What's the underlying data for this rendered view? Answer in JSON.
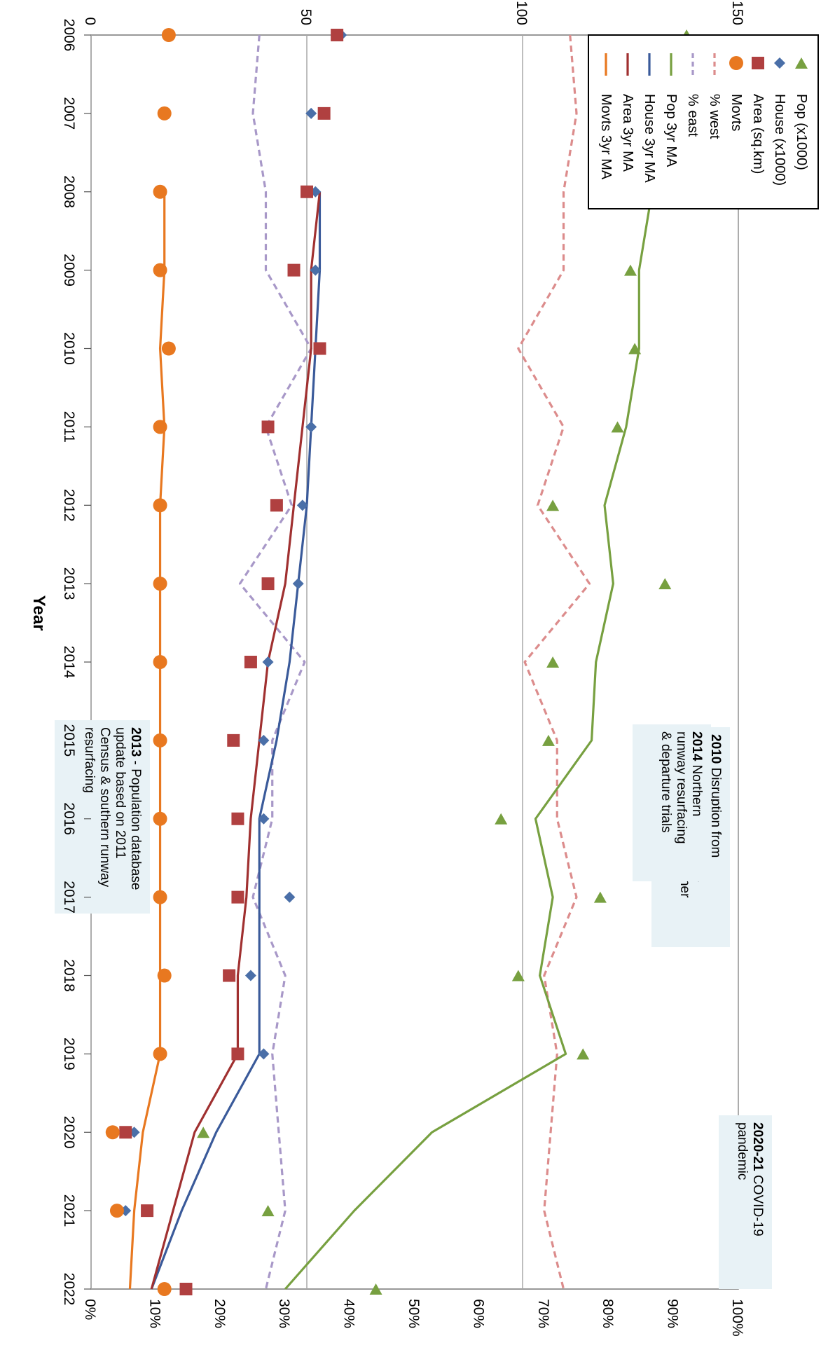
{
  "chart_data": {
    "type": "line",
    "orientation": "rotated-90-clockwise",
    "xlabel": "Year",
    "categories": [
      "2006",
      "2007",
      "2008",
      "2009",
      "2010",
      "2011",
      "2012",
      "2013",
      "2014",
      "2015",
      "2016",
      "2017",
      "2018",
      "2019",
      "2020",
      "2021",
      "2022"
    ],
    "left_axis": {
      "ticks": [
        "0",
        "50",
        "100",
        "150"
      ],
      "ylim": [
        0,
        150
      ]
    },
    "right_axis": {
      "ticks": [
        "0%",
        "10%",
        "20%",
        "30%",
        "40%",
        "50%",
        "60%",
        "70%",
        "80%",
        "90%",
        "100%"
      ],
      "ylim": [
        0,
        100
      ]
    },
    "grid": "horizontal at 0, 50, 100, 150",
    "legend_position": "top-right",
    "series": [
      {
        "name": "Pop (x1000)",
        "axis": "left",
        "kind": "marker",
        "marker": "triangle",
        "color": "#77a040",
        "values": [
          138,
          127,
          128,
          125,
          126,
          122,
          107,
          133,
          107,
          106,
          95,
          118,
          99,
          114,
          26,
          41,
          66
        ]
      },
      {
        "name": "House (x1000)",
        "axis": "left",
        "kind": "marker",
        "marker": "diamond",
        "color": "#4a6fa8",
        "values": [
          58,
          51,
          52,
          52,
          53,
          51,
          49,
          48,
          41,
          40,
          40,
          46,
          37,
          40,
          10,
          8,
          17
        ]
      },
      {
        "name": "Area (sq.km)",
        "axis": "left",
        "kind": "marker",
        "marker": "square",
        "color": "#b04040",
        "values": [
          57,
          54,
          50,
          47,
          53,
          41,
          43,
          41,
          37,
          33,
          34,
          34,
          32,
          34,
          8,
          13,
          22
        ]
      },
      {
        "name": "Movts",
        "axis": "left",
        "kind": "marker",
        "marker": "circle",
        "color": "#e87820",
        "values": [
          18,
          17,
          16,
          16,
          18,
          16,
          16,
          16,
          16,
          16,
          16,
          16,
          17,
          16,
          5,
          6,
          17
        ]
      },
      {
        "name": "% west",
        "axis": "right",
        "kind": "dashed",
        "color": "#dc8c8c",
        "values": [
          74,
          75,
          73,
          73,
          66,
          73,
          69,
          77,
          67,
          72,
          72,
          75,
          70,
          72,
          71,
          70,
          73
        ]
      },
      {
        "name": "% east",
        "axis": "right",
        "kind": "dashed",
        "color": "#a898c8",
        "values": [
          26,
          25,
          27,
          27,
          34,
          27,
          31,
          23,
          33,
          28,
          28,
          25,
          30,
          28,
          29,
          30,
          27
        ]
      },
      {
        "name": "Pop 3yr MA",
        "axis": "left",
        "kind": "line",
        "color": "#77a040",
        "values": [
          null,
          null,
          130,
          127,
          127,
          124,
          119,
          121,
          117,
          116,
          103,
          107,
          104,
          110,
          79,
          61,
          45
        ]
      },
      {
        "name": "House 3yr MA",
        "axis": "left",
        "kind": "line",
        "color": "#3a5a9a",
        "values": [
          null,
          null,
          53,
          53,
          52,
          51,
          50,
          48,
          46,
          43,
          39,
          39,
          39,
          39,
          29,
          21,
          14
        ]
      },
      {
        "name": "Area 3yr MA",
        "axis": "left",
        "kind": "line",
        "color": "#a03030",
        "values": [
          null,
          null,
          53,
          51,
          51,
          49,
          47,
          45,
          41,
          39,
          37,
          36,
          34,
          34,
          24,
          19,
          14
        ]
      },
      {
        "name": "Movts 3yr MA",
        "axis": "left",
        "kind": "line",
        "color": "#e87820",
        "values": [
          null,
          null,
          17,
          17,
          16,
          17,
          16,
          16,
          16,
          16,
          16,
          16,
          16,
          16,
          12,
          10,
          9
        ]
      }
    ],
    "annotations": [
      {
        "id": "ann-2013",
        "bold": "2013",
        "text": " - Population database update based on 2011 Census & southern runway resurfacing"
      },
      {
        "id": "ann-2010",
        "bold": "2010",
        "text": " Disruption from volcanic ash, ATC strikes and adverse winter weather"
      },
      {
        "id": "ann-2014",
        "bold": "2014",
        "text": " Northern runway resurfacing & departure trials"
      },
      {
        "id": "ann-2020",
        "bold": "2020-21",
        "text": " COVID-19 pandemic"
      }
    ]
  }
}
